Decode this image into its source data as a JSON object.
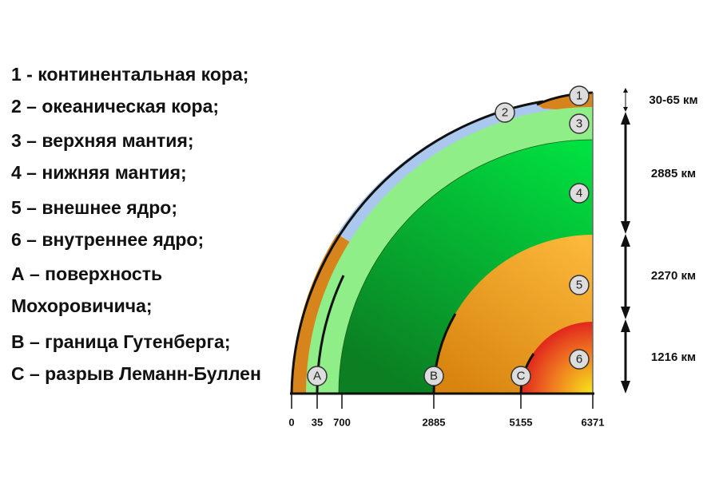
{
  "legend": [
    "1 - континентальная кора;",
    "2 – океаническая кора;",
    "3 – верхняя мантия;",
    "4 – нижняя мантия;",
    "5 – внешнее ядро;",
    "6 – внутреннее ядро;",
    "А – поверхность",
    "Мохоровичича;",
    "В – граница Гутенберга;",
    "С – разрыв Леманн-Буллен"
  ],
  "markers": [
    "1",
    "2",
    "3",
    "4",
    "5",
    "6",
    "A",
    "B",
    "C"
  ],
  "axis_labels": [
    "0",
    "35",
    "700",
    "2885",
    "5155",
    "6371"
  ],
  "thickness_labels": [
    "30-65 км",
    "2885 км",
    "2270 км",
    "1216 км"
  ]
}
